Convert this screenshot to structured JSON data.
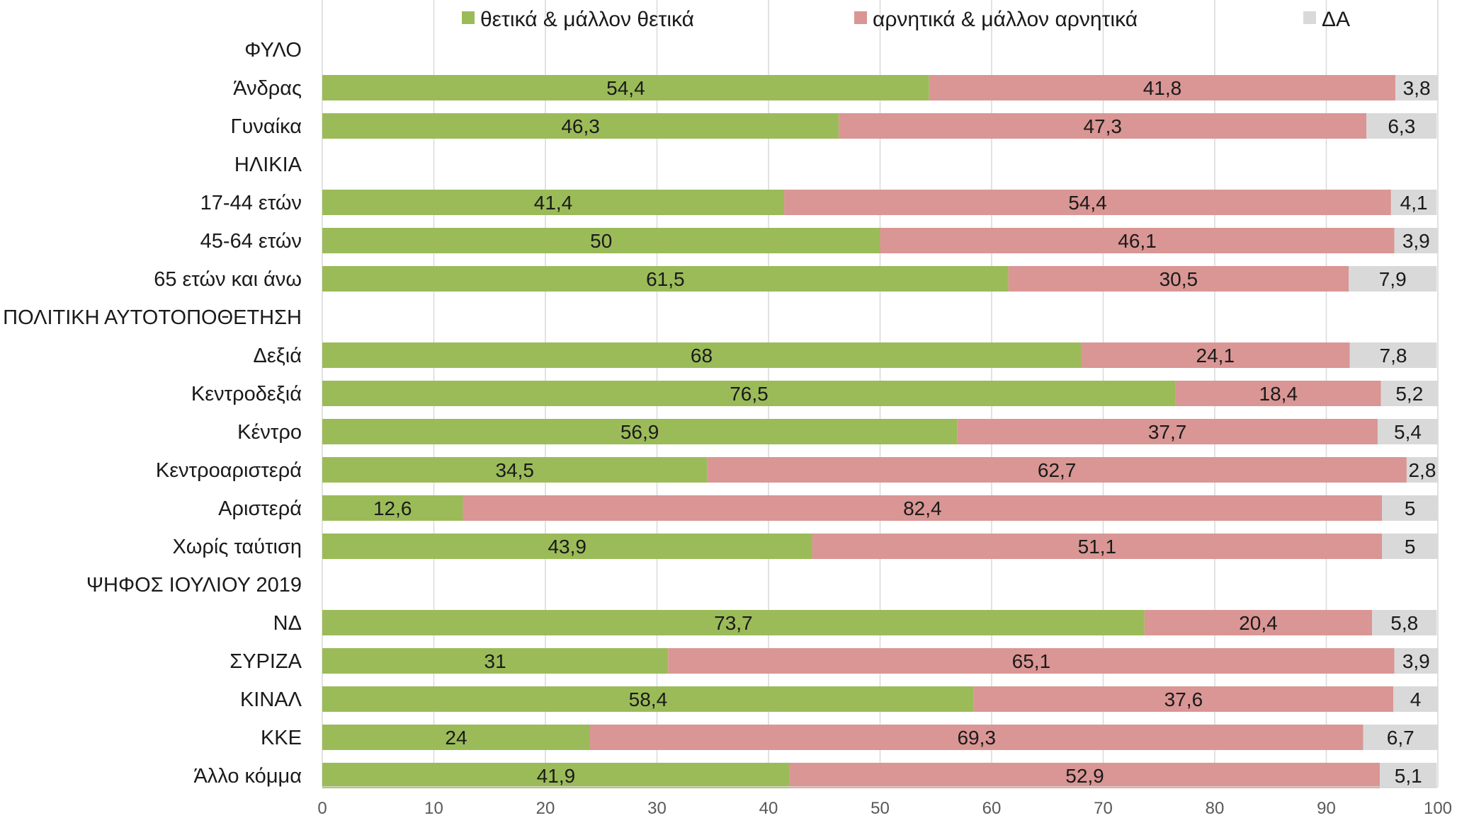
{
  "chart_data": {
    "type": "bar",
    "orientation": "horizontal",
    "stacked": true,
    "legend_position": "top",
    "grid": true,
    "xlim": [
      0,
      100
    ],
    "x_ticks": [
      "0",
      "10",
      "20",
      "30",
      "40",
      "50",
      "60",
      "70",
      "80",
      "90",
      "100"
    ],
    "series": [
      {
        "name": "θετικά & μάλλον θετικά",
        "color": "#9bbb59"
      },
      {
        "name": "αρνητικά & μάλλον αρνητικά",
        "color": "#d99694"
      },
      {
        "name": "ΔΑ",
        "color": "#d9d9d9"
      }
    ],
    "rows": [
      {
        "label": "ΦΥΛΟ",
        "group": true
      },
      {
        "label": "Άνδρας",
        "values": [
          54.4,
          41.8,
          3.8
        ],
        "labels": [
          "54,4",
          "41,8",
          "3,8"
        ]
      },
      {
        "label": "Γυναίκα",
        "values": [
          46.3,
          47.3,
          6.3
        ],
        "labels": [
          "46,3",
          "47,3",
          "6,3"
        ]
      },
      {
        "label": "ΗΛΙΚΙΑ",
        "group": true
      },
      {
        "label": "17-44 ετών",
        "values": [
          41.4,
          54.4,
          4.1
        ],
        "labels": [
          "41,4",
          "54,4",
          "4,1"
        ]
      },
      {
        "label": "45-64 ετών",
        "values": [
          50,
          46.1,
          3.9
        ],
        "labels": [
          "50",
          "46,1",
          "3,9"
        ]
      },
      {
        "label": "65 ετών και άνω",
        "values": [
          61.5,
          30.5,
          7.9
        ],
        "labels": [
          "61,5",
          "30,5",
          "7,9"
        ]
      },
      {
        "label": "ΠΟΛΙΤΙΚΗ ΑΥΤΟΤΟΠΟΘΕΤΗΣΗ",
        "group": true
      },
      {
        "label": "Δεξιά",
        "values": [
          68,
          24.1,
          7.8
        ],
        "labels": [
          "68",
          "24,1",
          "7,8"
        ]
      },
      {
        "label": "Κεντροδεξιά",
        "values": [
          76.5,
          18.4,
          5.2
        ],
        "labels": [
          "76,5",
          "18,4",
          "5,2"
        ]
      },
      {
        "label": "Κέντρο",
        "values": [
          56.9,
          37.7,
          5.4
        ],
        "labels": [
          "56,9",
          "37,7",
          "5,4"
        ]
      },
      {
        "label": "Κεντροαριστερά",
        "values": [
          34.5,
          62.7,
          2.8
        ],
        "labels": [
          "34,5",
          "62,7",
          "2,8"
        ]
      },
      {
        "label": "Αριστερά",
        "values": [
          12.6,
          82.4,
          5
        ],
        "labels": [
          "12,6",
          "82,4",
          "5"
        ]
      },
      {
        "label": "Χωρίς ταύτιση",
        "values": [
          43.9,
          51.1,
          5
        ],
        "labels": [
          "43,9",
          "51,1",
          "5"
        ]
      },
      {
        "label": "ΨΗΦΟΣ ΙΟΥΛΙΟΥ 2019",
        "group": true
      },
      {
        "label": "ΝΔ",
        "values": [
          73.7,
          20.4,
          5.8
        ],
        "labels": [
          "73,7",
          "20,4",
          "5,8"
        ]
      },
      {
        "label": "ΣΥΡΙΖΑ",
        "values": [
          31,
          65.1,
          3.9
        ],
        "labels": [
          "31",
          "65,1",
          "3,9"
        ]
      },
      {
        "label": "ΚΙΝΑΛ",
        "values": [
          58.4,
          37.6,
          4
        ],
        "labels": [
          "58,4",
          "37,6",
          "4"
        ]
      },
      {
        "label": "ΚΚΕ",
        "values": [
          24,
          69.3,
          6.7
        ],
        "labels": [
          "24",
          "69,3",
          "6,7"
        ]
      },
      {
        "label": "Άλλο κόμμα",
        "values": [
          41.9,
          52.9,
          5.1
        ],
        "labels": [
          "41,9",
          "52,9",
          "5,1"
        ]
      }
    ]
  }
}
